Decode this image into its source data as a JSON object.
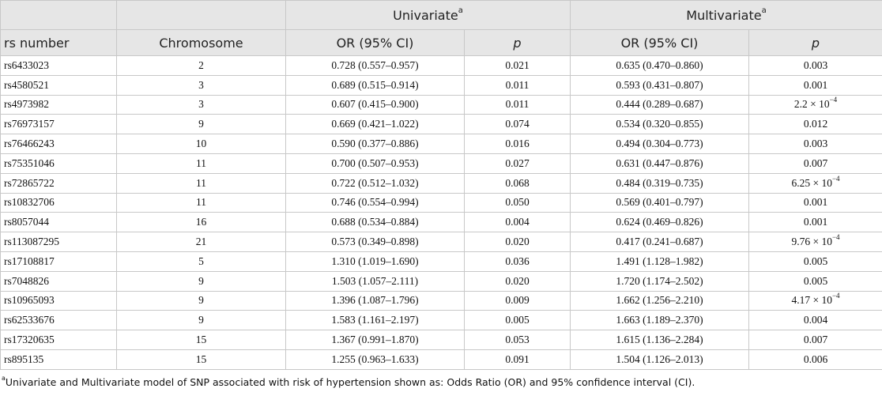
{
  "header": {
    "univariate_label": "Univariate",
    "univariate_sup": "a",
    "multivariate_label": "Multivariate",
    "multivariate_sup": "a",
    "columns": [
      "rs number",
      "Chromosome",
      "OR (95% CI)",
      "p",
      "OR (95% CI)",
      "p"
    ]
  },
  "rows": [
    {
      "rs": "rs6433023",
      "chr": "2",
      "uni_or": "0.728 (0.557–0.957)",
      "uni_p": "0.021",
      "multi_or": "0.635 (0.470–0.860)",
      "multi_p": "0.003",
      "multi_p_exp": ""
    },
    {
      "rs": "rs4580521",
      "chr": "3",
      "uni_or": "0.689 (0.515–0.914)",
      "uni_p": "0.011",
      "multi_or": "0.593 (0.431–0.807)",
      "multi_p": "0.001",
      "multi_p_exp": ""
    },
    {
      "rs": "rs4973982",
      "chr": "3",
      "uni_or": "0.607 (0.415–0.900)",
      "uni_p": "0.011",
      "multi_or": "0.444 (0.289–0.687)",
      "multi_p": "2.2 × 10",
      "multi_p_exp": "−4"
    },
    {
      "rs": "rs76973157",
      "chr": "9",
      "uni_or": "0.669 (0.421–1.022)",
      "uni_p": "0.074",
      "multi_or": "0.534 (0.320–0.855)",
      "multi_p": "0.012",
      "multi_p_exp": ""
    },
    {
      "rs": "rs76466243",
      "chr": "10",
      "uni_or": "0.590 (0.377–0.886)",
      "uni_p": "0.016",
      "multi_or": "0.494 (0.304–0.773)",
      "multi_p": "0.003",
      "multi_p_exp": ""
    },
    {
      "rs": "rs75351046",
      "chr": "11",
      "uni_or": "0.700 (0.507–0.953)",
      "uni_p": "0.027",
      "multi_or": "0.631 (0.447–0.876)",
      "multi_p": "0.007",
      "multi_p_exp": ""
    },
    {
      "rs": "rs72865722",
      "chr": "11",
      "uni_or": "0.722 (0.512–1.032)",
      "uni_p": "0.068",
      "multi_or": "0.484 (0.319–0.735)",
      "multi_p": "6.25 × 10",
      "multi_p_exp": "−4"
    },
    {
      "rs": "rs10832706",
      "chr": "11",
      "uni_or": "0.746 (0.554–0.994)",
      "uni_p": "0.050",
      "multi_or": "0.569 (0.401–0.797)",
      "multi_p": "0.001",
      "multi_p_exp": ""
    },
    {
      "rs": "rs8057044",
      "chr": "16",
      "uni_or": "0.688 (0.534–0.884)",
      "uni_p": "0.004",
      "multi_or": "0.624 (0.469–0.826)",
      "multi_p": "0.001",
      "multi_p_exp": ""
    },
    {
      "rs": "rs113087295",
      "chr": "21",
      "uni_or": "0.573 (0.349–0.898)",
      "uni_p": "0.020",
      "multi_or": "0.417 (0.241–0.687)",
      "multi_p": "9.76 × 10",
      "multi_p_exp": "−4"
    },
    {
      "rs": "rs17108817",
      "chr": "5",
      "uni_or": "1.310 (1.019–1.690)",
      "uni_p": "0.036",
      "multi_or": "1.491 (1.128–1.982)",
      "multi_p": "0.005",
      "multi_p_exp": ""
    },
    {
      "rs": "rs7048826",
      "chr": "9",
      "uni_or": "1.503 (1.057–2.111)",
      "uni_p": "0.020",
      "multi_or": "1.720 (1.174–2.502)",
      "multi_p": "0.005",
      "multi_p_exp": ""
    },
    {
      "rs": "rs10965093",
      "chr": "9",
      "uni_or": "1.396 (1.087–1.796)",
      "uni_p": "0.009",
      "multi_or": "1.662 (1.256–2.210)",
      "multi_p": "4.17 × 10",
      "multi_p_exp": "−4"
    },
    {
      "rs": "rs62533676",
      "chr": "9",
      "uni_or": "1.583 (1.161–2.197)",
      "uni_p": "0.005",
      "multi_or": "1.663 (1.189–2.370)",
      "multi_p": "0.004",
      "multi_p_exp": ""
    },
    {
      "rs": "rs17320635",
      "chr": "15",
      "uni_or": "1.367 (0.991–1.870)",
      "uni_p": "0.053",
      "multi_or": "1.615 (1.136–2.284)",
      "multi_p": "0.007",
      "multi_p_exp": ""
    },
    {
      "rs": "rs895135",
      "chr": "15",
      "uni_or": "1.255 (0.963–1.633)",
      "uni_p": "0.091",
      "multi_or": "1.504 (1.126–2.013)",
      "multi_p": "0.006",
      "multi_p_exp": ""
    }
  ],
  "footnote": {
    "marker": "a",
    "text": "Univariate and Multivariate model of SNP associated with risk of hypertension shown as: Odds Ratio (OR) and 95% confidence interval (CI)."
  }
}
